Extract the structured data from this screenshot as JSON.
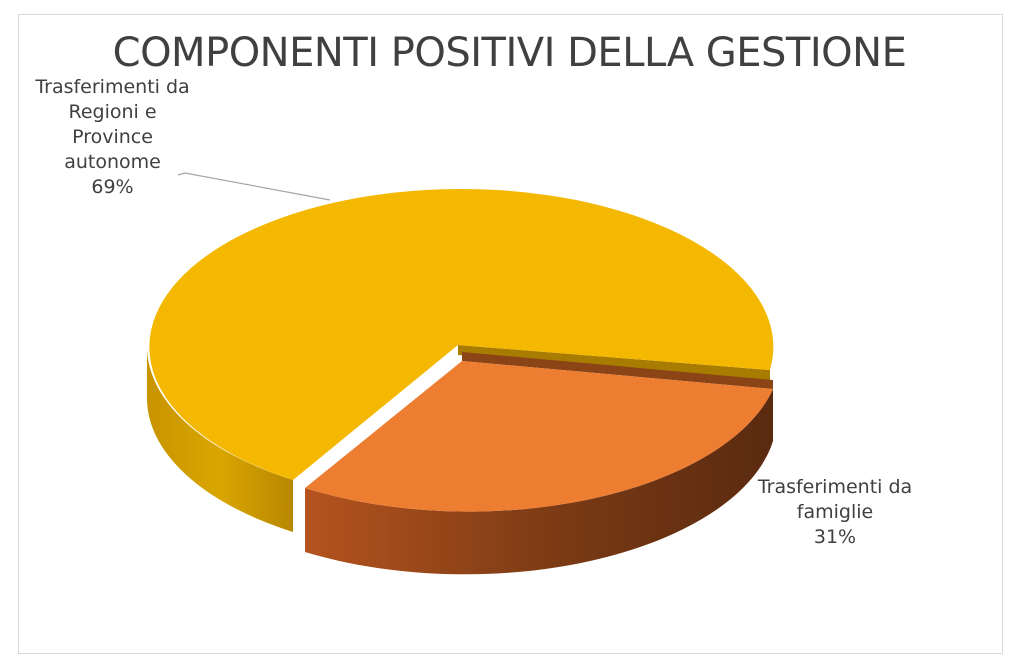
{
  "chart_data": {
    "type": "pie",
    "style": "3d",
    "title": "COMPONENTI POSITIVI DELLA GESTIONE",
    "slices": [
      {
        "label_lines": [
          "Trasferimenti da",
          "Regioni e",
          "Province",
          "autonome"
        ],
        "percent_label": "69%",
        "value": 69,
        "color": "#F5B800",
        "exploded": false
      },
      {
        "label_lines": [
          "Trasferimenti da",
          "famiglie"
        ],
        "percent_label": "31%",
        "value": 31,
        "color": "#ED7D31",
        "exploded": true
      }
    ]
  }
}
